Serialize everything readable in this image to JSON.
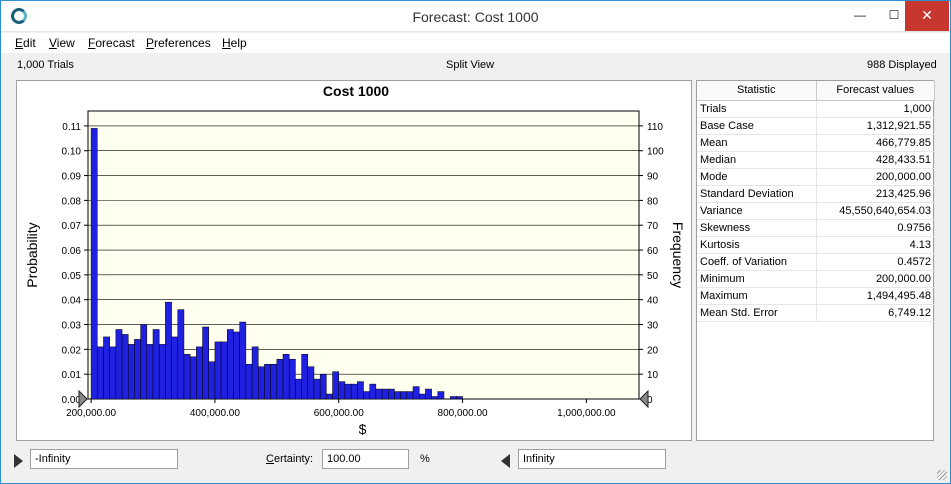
{
  "window": {
    "title": "Forecast: Cost 1000",
    "min_glyph": "—",
    "max_glyph": "☐",
    "close_glyph": "✕"
  },
  "menu": {
    "items": [
      {
        "u": "E",
        "rest": "dit"
      },
      {
        "u": "V",
        "rest": "iew"
      },
      {
        "u": "F",
        "rest": "orecast"
      },
      {
        "u": "P",
        "rest": "references"
      },
      {
        "u": "H",
        "rest": "elp"
      }
    ]
  },
  "status": {
    "trials": "1,000 Trials",
    "view": "Split View",
    "displayed": "988 Displayed"
  },
  "chart_data": {
    "type": "bar",
    "title": "Cost 1000",
    "xlabel": "$",
    "ylabel": "Probability",
    "y2label": "Frequency",
    "x_tick_labels": [
      "200,000.00",
      "400,000.00",
      "600,000.00",
      "800,000.00",
      "1,000,000.00"
    ],
    "x_ticks": [
      200000,
      400000,
      600000,
      800000,
      1000000
    ],
    "xlim": [
      195000,
      1085000
    ],
    "y_tick_labels": [
      "0.00",
      "0.01",
      "0.02",
      "0.03",
      "0.04",
      "0.05",
      "0.06",
      "0.07",
      "0.08",
      "0.09",
      "0.10",
      "0.11"
    ],
    "y2_tick_labels": [
      "0",
      "10",
      "20",
      "30",
      "40",
      "50",
      "60",
      "70",
      "80",
      "90",
      "100",
      "110"
    ],
    "ylim": [
      0,
      0.116
    ],
    "bin_start": 200000,
    "bin_width": 10000,
    "values": [
      0.109,
      0.021,
      0.025,
      0.021,
      0.028,
      0.026,
      0.022,
      0.024,
      0.03,
      0.022,
      0.028,
      0.022,
      0.039,
      0.025,
      0.036,
      0.018,
      0.017,
      0.021,
      0.029,
      0.015,
      0.023,
      0.023,
      0.028,
      0.027,
      0.031,
      0.014,
      0.021,
      0.013,
      0.014,
      0.014,
      0.016,
      0.018,
      0.016,
      0.008,
      0.018,
      0.013,
      0.008,
      0.01,
      0.002,
      0.011,
      0.007,
      0.006,
      0.006,
      0.007,
      0.003,
      0.006,
      0.004,
      0.004,
      0.004,
      0.003,
      0.003,
      0.003,
      0.005,
      0.002,
      0.004,
      0.001,
      0.003,
      0.0,
      0.001,
      0.001
    ],
    "bar_color": "#2020e0",
    "plot_bg": "#fffff0"
  },
  "stats": {
    "headers": [
      "Statistic",
      "Forecast values"
    ],
    "rows": [
      [
        "Trials",
        "1,000"
      ],
      [
        "Base Case",
        "1,312,921.55"
      ],
      [
        "Mean",
        "466,779.85"
      ],
      [
        "Median",
        "428,433.51"
      ],
      [
        "Mode",
        "200,000.00"
      ],
      [
        "Standard Deviation",
        "213,425.96"
      ],
      [
        "Variance",
        "45,550,640,654.03"
      ],
      [
        "Skewness",
        "0.9756"
      ],
      [
        "Kurtosis",
        "4.13"
      ],
      [
        "Coeff. of Variation",
        "0.4572"
      ],
      [
        "Minimum",
        "200,000.00"
      ],
      [
        "Maximum",
        "1,494,495.48"
      ],
      [
        "Mean Std. Error",
        "6,749.12"
      ]
    ]
  },
  "certainty": {
    "left_value": "-Infinity",
    "label_u": "C",
    "label_rest": "ertainty:",
    "value": "100.00",
    "unit": "%",
    "right_value": "Infinity"
  }
}
